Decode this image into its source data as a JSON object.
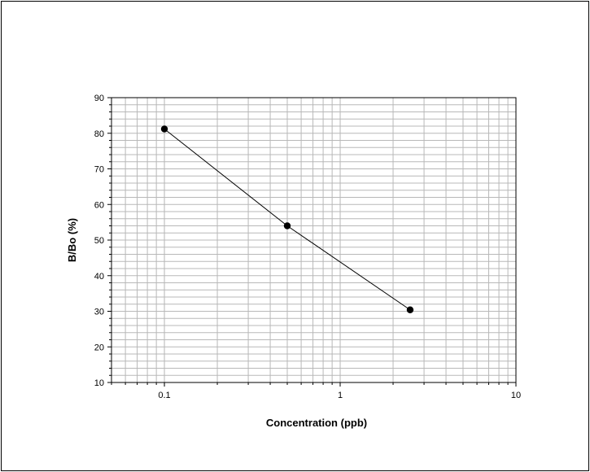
{
  "chart_data": {
    "type": "line",
    "title": "",
    "xlabel": "Concentration (ppb)",
    "ylabel": "B/Bo (%)",
    "x_scale": "log",
    "xlim": [
      0.05,
      10
    ],
    "ylim": [
      10,
      90
    ],
    "x_ticks": [
      0.1,
      1,
      10
    ],
    "x_tick_labels": [
      "0.1",
      "1",
      "10"
    ],
    "y_ticks": [
      10,
      20,
      30,
      40,
      50,
      60,
      70,
      80,
      90
    ],
    "y_tick_labels": [
      "10",
      "20",
      "30",
      "40",
      "50",
      "60",
      "70",
      "80",
      "90"
    ],
    "grid": true,
    "legend": "none",
    "series": [
      {
        "x": [
          0.1,
          0.5,
          2.5
        ],
        "y": [
          81.2,
          54.0,
          30.4
        ],
        "color": "#000000",
        "marker": "circle"
      }
    ]
  }
}
